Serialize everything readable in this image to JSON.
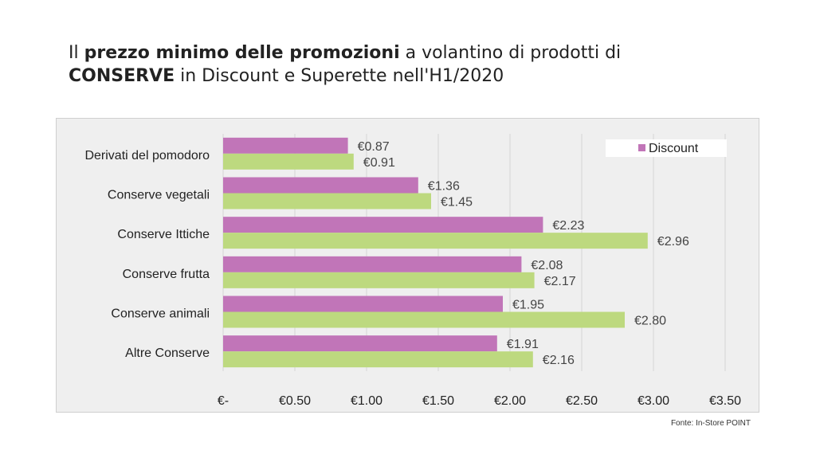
{
  "title": {
    "prefix": "Il ",
    "bold1": "prezzo minimo delle promozioni",
    "mid": " a volantino di prodotti di",
    "bold2": "CONSERVE",
    "suffix": " in Discount e Superette nell'H1/2020"
  },
  "source": "Fonte: In-Store POINT",
  "colors": {
    "discount": "#c175b8",
    "superette": "#bdd97f",
    "frame": "#efefef",
    "grid": "#d6d6d6"
  },
  "chart_data": {
    "type": "bar",
    "orientation": "horizontal",
    "categories": [
      "Derivati del pomodoro",
      "Conserve vegetali",
      "Conserve Ittiche",
      "Conserve frutta",
      "Conserve animali",
      "Altre Conserve"
    ],
    "series": [
      {
        "name": "Discount",
        "values": [
          0.87,
          1.36,
          2.23,
          2.08,
          1.95,
          1.91
        ],
        "labels": [
          "€0.87",
          "€1.36",
          "€2.23",
          "€2.08",
          "€1.95",
          "€1.91"
        ]
      },
      {
        "values": [
          0.91,
          1.45,
          2.96,
          2.17,
          2.8,
          2.16
        ],
        "labels": [
          "€0.91",
          "€1.45",
          "€2.96",
          "€2.17",
          "€2.80",
          "€2.16"
        ]
      }
    ],
    "xlim": [
      0,
      3.5
    ],
    "xticks": [
      0,
      0.5,
      1,
      1.5,
      2,
      2.5,
      3,
      3.5
    ],
    "xtick_labels": [
      "€-",
      "€0.50",
      "€1.00",
      "€1.50",
      "€2.00",
      "€2.50",
      "€3.00",
      "€3.50"
    ],
    "grid": true,
    "legend": {
      "position": "top-right",
      "entries": [
        "Discount"
      ]
    }
  }
}
